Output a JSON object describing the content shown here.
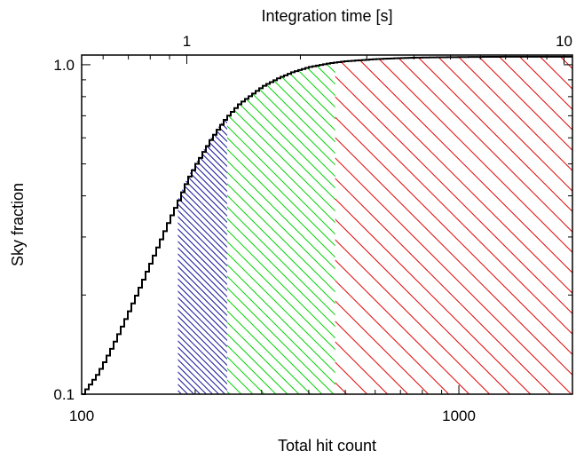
{
  "chart_data": {
    "type": "line",
    "title": "",
    "xlabel": "Total hit count",
    "ylabel": "Sky fraction",
    "top_xlabel": "Integration time [s]",
    "x_scale": "log",
    "y_scale": "log",
    "xlim": [
      100,
      2000
    ],
    "ylim": [
      0.1,
      1.07
    ],
    "x_ticks": [
      {
        "value": 100,
        "label": "100"
      },
      {
        "value": 1000,
        "label": "1000"
      }
    ],
    "y_ticks": [
      {
        "value": 0.1,
        "label": "0.1"
      },
      {
        "value": 1.0,
        "label": "1.0"
      }
    ],
    "top_ticks": [
      {
        "value": 1,
        "label": "1"
      },
      {
        "value": 10,
        "label": "10"
      }
    ],
    "top_axis_hits_per_second": 190,
    "grid": false,
    "series": [
      {
        "style": "step",
        "color": "#000000",
        "x": [
          100,
          110,
          120,
          130,
          140,
          150,
          160,
          170,
          180,
          190,
          200,
          220,
          240,
          260,
          280,
          300,
          330,
          360,
          400,
          450,
          500,
          600,
          700,
          800,
          1000,
          1200,
          1500,
          2000
        ],
        "y": [
          0.1,
          0.116,
          0.14,
          0.17,
          0.205,
          0.245,
          0.29,
          0.34,
          0.39,
          0.45,
          0.5,
          0.6,
          0.69,
          0.76,
          0.81,
          0.86,
          0.91,
          0.95,
          0.985,
          1.01,
          1.025,
          1.04,
          1.048,
          1.052,
          1.055,
          1.057,
          1.058,
          1.058
        ]
      }
    ],
    "shaded_regions": [
      {
        "x_from": 180,
        "x_to": 243,
        "color": "#1a1a9c",
        "hatch": "dense"
      },
      {
        "x_from": 243,
        "x_to": 470,
        "color": "#00d000",
        "hatch": "medium"
      },
      {
        "x_from": 470,
        "x_to": 2000,
        "color": "#e00000",
        "hatch": "sparse"
      }
    ]
  }
}
